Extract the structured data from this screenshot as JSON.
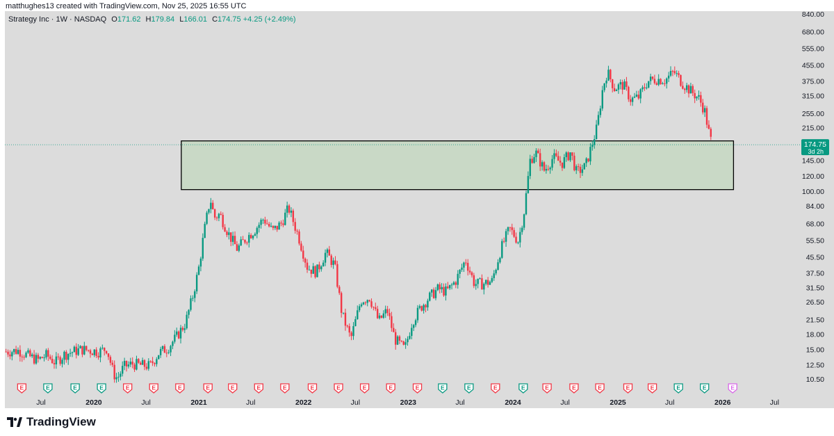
{
  "credit": "matthughes13 created with TradingView.com, Nov 25, 2025 16:55 UTC",
  "legend": {
    "symbol": "Strategy Inc · 1W · NASDAQ",
    "open_label": "O",
    "open": "171.62",
    "high_label": "H",
    "high": "179.84",
    "low_label": "L",
    "low": "166.01",
    "close_label": "C",
    "close": "174.75",
    "change": "+4.25 (+2.49%)"
  },
  "price_tag": {
    "price": "174.75",
    "countdown": "3d 2h"
  },
  "brand": "TradingView",
  "colors": {
    "up": "#089981",
    "down": "#f23645",
    "background": "#dcdcdc",
    "zone_fill": "#c9d9c6",
    "zone_border": "#000000",
    "earnings_purple": "#d966e8"
  },
  "chart_data": {
    "type": "candlestick",
    "timeframe": "1W",
    "y_scale": "log",
    "ylim": [
      10,
      840
    ],
    "y_ticks": [
      "840.00",
      "680.00",
      "555.00",
      "455.00",
      "375.00",
      "315.00",
      "255.00",
      "215.00",
      "145.00",
      "120.00",
      "100.00",
      "84.00",
      "68.00",
      "55.50",
      "45.50",
      "37.50",
      "31.50",
      "26.50",
      "21.50",
      "18.00",
      "15.00",
      "12.50",
      "10.50"
    ],
    "x_ticks": [
      "Jul",
      "2020",
      "Jul",
      "2021",
      "Jul",
      "2022",
      "Jul",
      "2023",
      "Jul",
      "2024",
      "Jul",
      "2025",
      "Jul",
      "2026",
      "Jul"
    ],
    "x_range": [
      "2019-02-25",
      "2026-09-30"
    ],
    "last_price": 174.75,
    "zone": {
      "low": 102,
      "high": 183,
      "start": "2020-11-01",
      "end": "2026-02-08"
    },
    "series_close": [
      [
        "2019-03-01",
        14.6
      ],
      [
        "2019-04-15",
        14.8
      ],
      [
        "2019-05-20",
        13.8
      ],
      [
        "2019-06-20",
        13.2
      ],
      [
        "2019-07-20",
        14.0
      ],
      [
        "2019-08-20",
        12.8
      ],
      [
        "2019-09-20",
        14.1
      ],
      [
        "2019-10-20",
        14.6
      ],
      [
        "2019-11-20",
        15.0
      ],
      [
        "2019-12-20",
        14.8
      ],
      [
        "2020-01-20",
        14.6
      ],
      [
        "2020-02-15",
        15.2
      ],
      [
        "2020-03-10",
        11.2
      ],
      [
        "2020-03-23",
        10.6
      ],
      [
        "2020-04-15",
        12.2
      ],
      [
        "2020-05-15",
        12.6
      ],
      [
        "2020-06-15",
        12.4
      ],
      [
        "2020-07-15",
        12.3
      ],
      [
        "2020-08-15",
        14.4
      ],
      [
        "2020-09-15",
        15.3
      ],
      [
        "2020-10-15",
        17.4
      ],
      [
        "2020-11-15",
        20.5
      ],
      [
        "2020-12-10",
        28
      ],
      [
        "2020-12-31",
        39
      ],
      [
        "2021-01-20",
        62
      ],
      [
        "2021-02-10",
        92
      ],
      [
        "2021-02-24",
        73
      ],
      [
        "2021-03-15",
        76
      ],
      [
        "2021-04-15",
        60
      ],
      [
        "2021-05-15",
        50
      ],
      [
        "2021-06-15",
        57
      ],
      [
        "2021-07-15",
        63
      ],
      [
        "2021-08-15",
        72
      ],
      [
        "2021-09-15",
        62
      ],
      [
        "2021-10-15",
        68
      ],
      [
        "2021-11-10",
        82
      ],
      [
        "2021-12-15",
        58
      ],
      [
        "2022-01-15",
        40
      ],
      [
        "2022-02-15",
        38
      ],
      [
        "2022-03-20",
        48
      ],
      [
        "2022-04-20",
        41
      ],
      [
        "2022-05-15",
        23
      ],
      [
        "2022-06-15",
        17
      ],
      [
        "2022-07-20",
        27
      ],
      [
        "2022-08-20",
        28
      ],
      [
        "2022-09-20",
        21
      ],
      [
        "2022-10-20",
        24
      ],
      [
        "2022-11-15",
        17
      ],
      [
        "2022-12-20",
        15
      ],
      [
        "2023-01-15",
        21
      ],
      [
        "2023-02-15",
        25
      ],
      [
        "2023-03-15",
        28
      ],
      [
        "2023-04-15",
        31
      ],
      [
        "2023-05-15",
        30
      ],
      [
        "2023-06-15",
        34
      ],
      [
        "2023-07-20",
        44
      ],
      [
        "2023-08-20",
        33
      ],
      [
        "2023-09-20",
        33
      ],
      [
        "2023-10-20",
        34
      ],
      [
        "2023-11-20",
        50
      ],
      [
        "2023-12-20",
        64
      ],
      [
        "2024-01-20",
        55
      ],
      [
        "2024-02-10",
        80
      ],
      [
        "2024-03-01",
        145
      ],
      [
        "2024-03-20",
        160
      ],
      [
        "2024-04-20",
        128
      ],
      [
        "2024-05-20",
        150
      ],
      [
        "2024-06-20",
        140
      ],
      [
        "2024-07-20",
        160
      ],
      [
        "2024-08-10",
        125
      ],
      [
        "2024-09-10",
        135
      ],
      [
        "2024-10-01",
        172
      ],
      [
        "2024-10-20",
        215
      ],
      [
        "2024-11-10",
        350
      ],
      [
        "2024-11-25",
        420
      ],
      [
        "2024-12-20",
        345
      ],
      [
        "2025-01-20",
        360
      ],
      [
        "2025-02-15",
        300
      ],
      [
        "2025-03-15",
        310
      ],
      [
        "2025-04-15",
        375
      ],
      [
        "2025-05-15",
        385
      ],
      [
        "2025-06-15",
        380
      ],
      [
        "2025-07-15",
        420
      ],
      [
        "2025-08-15",
        365
      ],
      [
        "2025-09-15",
        330
      ],
      [
        "2025-10-10",
        305
      ],
      [
        "2025-10-30",
        265
      ],
      [
        "2025-11-15",
        200
      ],
      [
        "2025-11-25",
        174.75
      ]
    ],
    "earnings_markers": [
      {
        "date": "2019-04-25",
        "type": "E",
        "color": "red"
      },
      {
        "date": "2019-07-25",
        "type": "E",
        "color": "green"
      },
      {
        "date": "2019-10-28",
        "type": "E",
        "color": "green"
      },
      {
        "date": "2020-01-28",
        "type": "E",
        "color": "green"
      },
      {
        "date": "2020-04-28",
        "type": "E",
        "color": "red"
      },
      {
        "date": "2020-07-28",
        "type": "E",
        "color": "red"
      },
      {
        "date": "2020-10-27",
        "type": "E",
        "color": "red"
      },
      {
        "date": "2021-02-02",
        "type": "E",
        "color": "red"
      },
      {
        "date": "2021-04-29",
        "type": "E",
        "color": "red"
      },
      {
        "date": "2021-07-29",
        "type": "E",
        "color": "red"
      },
      {
        "date": "2021-10-28",
        "type": "E",
        "color": "red"
      },
      {
        "date": "2022-02-01",
        "type": "E",
        "color": "red"
      },
      {
        "date": "2022-05-03",
        "type": "E",
        "color": "red"
      },
      {
        "date": "2022-08-02",
        "type": "E",
        "color": "red"
      },
      {
        "date": "2022-11-01",
        "type": "E",
        "color": "red"
      },
      {
        "date": "2023-02-02",
        "type": "E",
        "color": "red"
      },
      {
        "date": "2023-05-01",
        "type": "E",
        "color": "green"
      },
      {
        "date": "2023-08-01",
        "type": "E",
        "color": "green"
      },
      {
        "date": "2023-11-01",
        "type": "E",
        "color": "red"
      },
      {
        "date": "2024-02-06",
        "type": "E",
        "color": "green"
      },
      {
        "date": "2024-04-29",
        "type": "E",
        "color": "red"
      },
      {
        "date": "2024-08-01",
        "type": "E",
        "color": "red"
      },
      {
        "date": "2024-10-30",
        "type": "E",
        "color": "red"
      },
      {
        "date": "2025-02-05",
        "type": "E",
        "color": "red"
      },
      {
        "date": "2025-05-01",
        "type": "E",
        "color": "red"
      },
      {
        "date": "2025-07-31",
        "type": "E",
        "color": "green"
      },
      {
        "date": "2025-10-30",
        "type": "E",
        "color": "green"
      },
      {
        "date": "2026-02-05",
        "type": "E",
        "color": "purple"
      }
    ]
  }
}
